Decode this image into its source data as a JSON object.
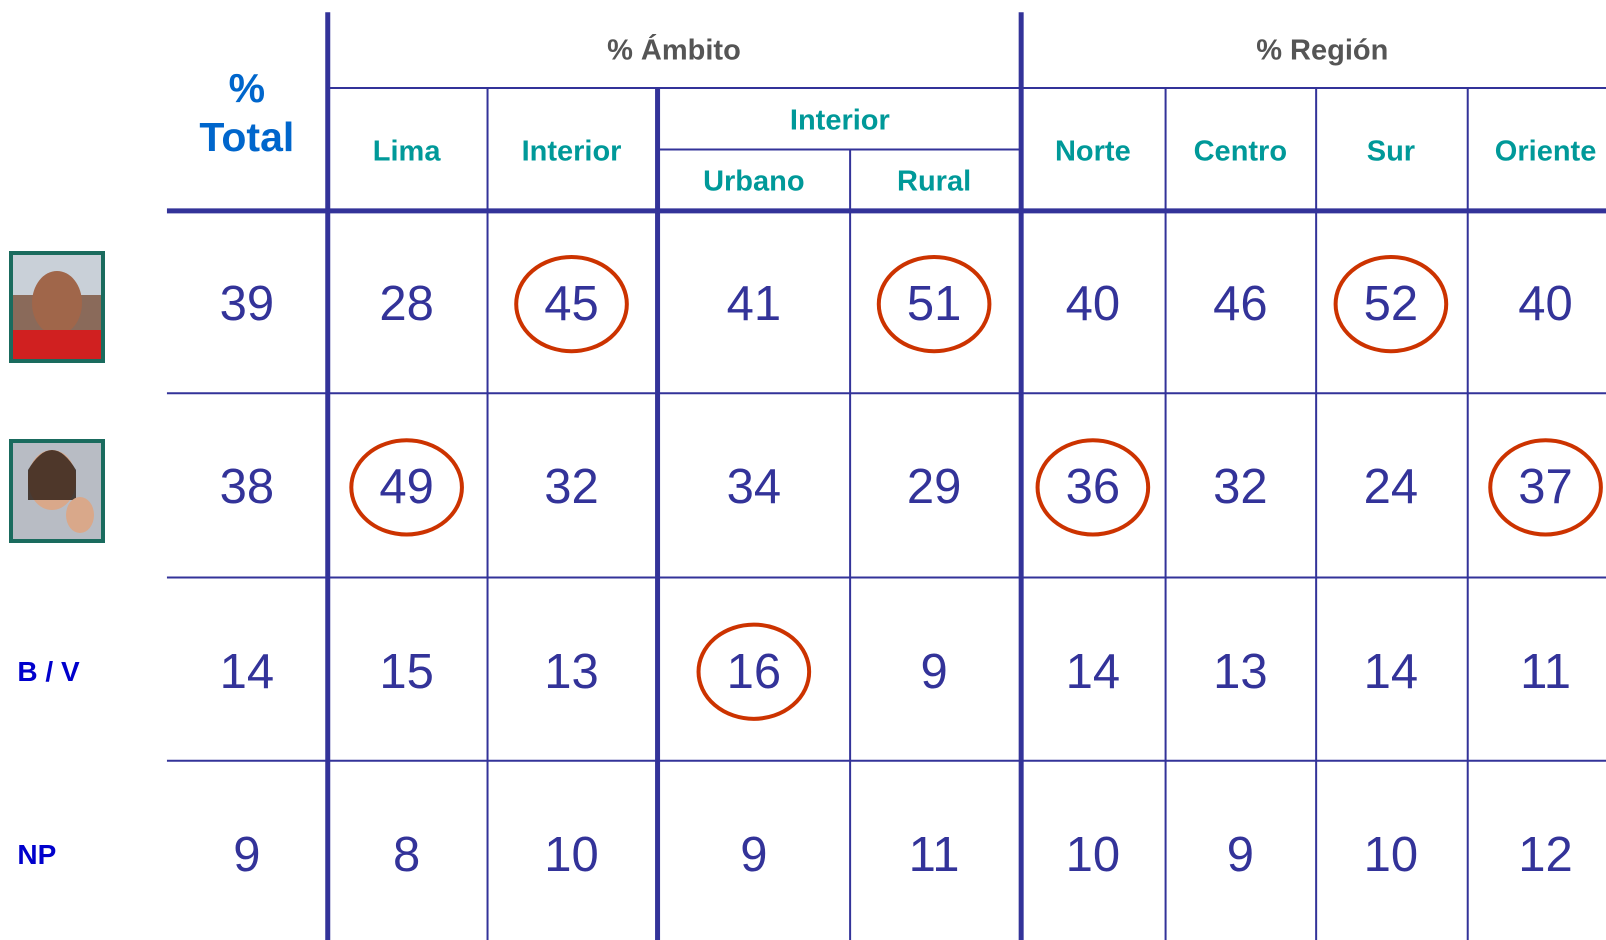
{
  "header": {
    "total": "% Total",
    "groups": [
      "% Ámbito",
      "% Región"
    ],
    "subgroup": "Interior",
    "columns": [
      "Lima",
      "Interior",
      "Urbano",
      "Rural",
      "Norte",
      "Centro",
      "Sur",
      "Oriente"
    ]
  },
  "rows": [
    {
      "values": [
        39,
        28,
        45,
        41,
        51,
        40,
        46,
        52,
        40
      ],
      "circled": [
        false,
        false,
        true,
        false,
        true,
        false,
        false,
        true,
        false
      ]
    },
    {
      "values": [
        38,
        49,
        32,
        34,
        29,
        36,
        32,
        24,
        37
      ],
      "circled": [
        false,
        true,
        false,
        false,
        false,
        true,
        false,
        false,
        true
      ]
    },
    {
      "label": "B / V",
      "values": [
        14,
        15,
        13,
        16,
        9,
        14,
        13,
        14,
        11
      ],
      "circled": [
        false,
        false,
        false,
        true,
        false,
        false,
        false,
        false,
        false
      ]
    },
    {
      "label": "NP",
      "values": [
        9,
        8,
        10,
        9,
        11,
        10,
        9,
        10,
        12
      ],
      "circled": [
        false,
        false,
        false,
        false,
        false,
        false,
        false,
        false,
        false
      ]
    }
  ]
}
